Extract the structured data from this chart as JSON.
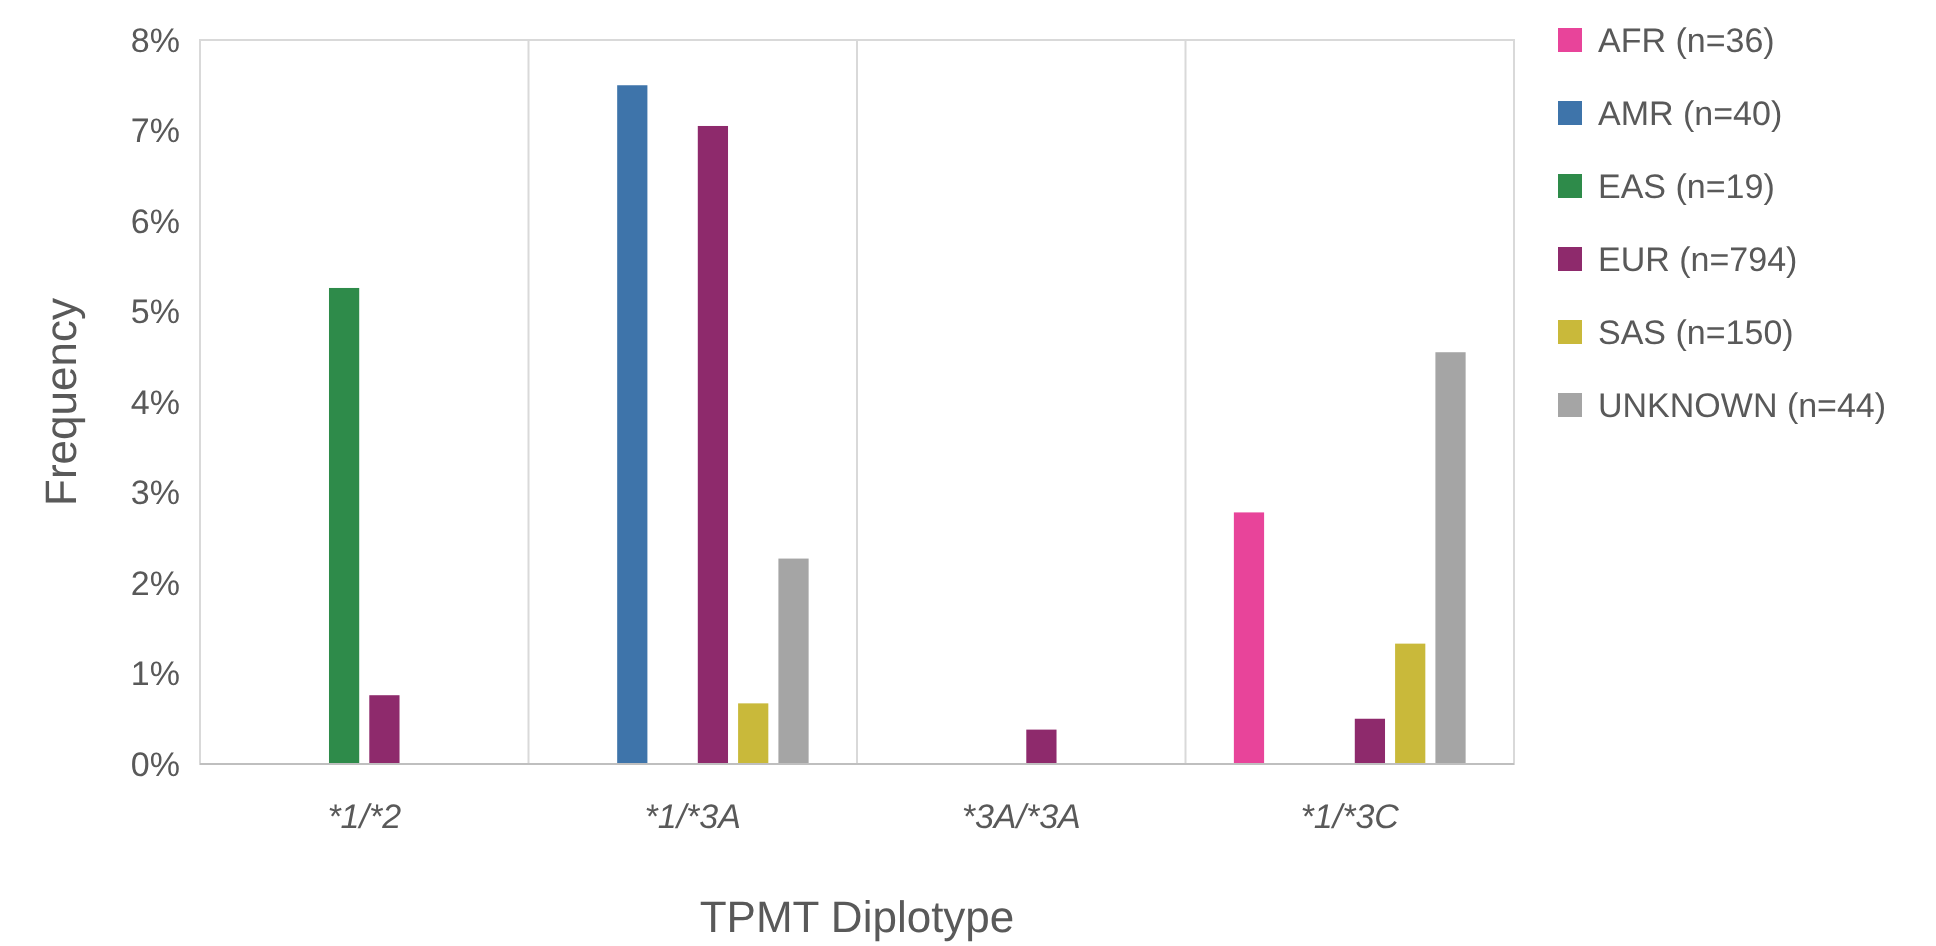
{
  "chart_data": {
    "type": "bar",
    "xlabel": "TPMT Diplotype",
    "ylabel": "Frequency",
    "categories": [
      "*1/*2",
      "*1/*3A",
      "*3A/*3A",
      "*1/*3C"
    ],
    "series": [
      {
        "name": "AFR (n=36)",
        "color": "#e8449a",
        "values": [
          0,
          0,
          0,
          2.78
        ]
      },
      {
        "name": "AMR (n=40)",
        "color": "#3e74aa",
        "values": [
          0,
          7.5,
          0,
          0
        ]
      },
      {
        "name": "EAS (n=19)",
        "color": "#2e8b4a",
        "values": [
          5.26,
          0,
          0,
          0
        ]
      },
      {
        "name": "EUR (n=794)",
        "color": "#8e2a6c",
        "values": [
          0.76,
          7.05,
          0.38,
          0.5
        ]
      },
      {
        "name": "SAS (n=150)",
        "color": "#c9b93a",
        "values": [
          0,
          0.67,
          0,
          1.33
        ]
      },
      {
        "name": "UNKNOWN (n=44)",
        "color": "#a5a5a5",
        "values": [
          0,
          2.27,
          0,
          4.55
        ]
      }
    ],
    "ylim": [
      0,
      8
    ],
    "yticks": [
      {
        "value": 0,
        "label": "0%"
      },
      {
        "value": 1,
        "label": "1%"
      },
      {
        "value": 2,
        "label": "2%"
      },
      {
        "value": 3,
        "label": "3%"
      },
      {
        "value": 4,
        "label": "4%"
      },
      {
        "value": 5,
        "label": "5%"
      },
      {
        "value": 6,
        "label": "6%"
      },
      {
        "value": 7,
        "label": "7%"
      },
      {
        "value": 8,
        "label": "8%"
      }
    ],
    "grid": "x",
    "legend": "right"
  }
}
